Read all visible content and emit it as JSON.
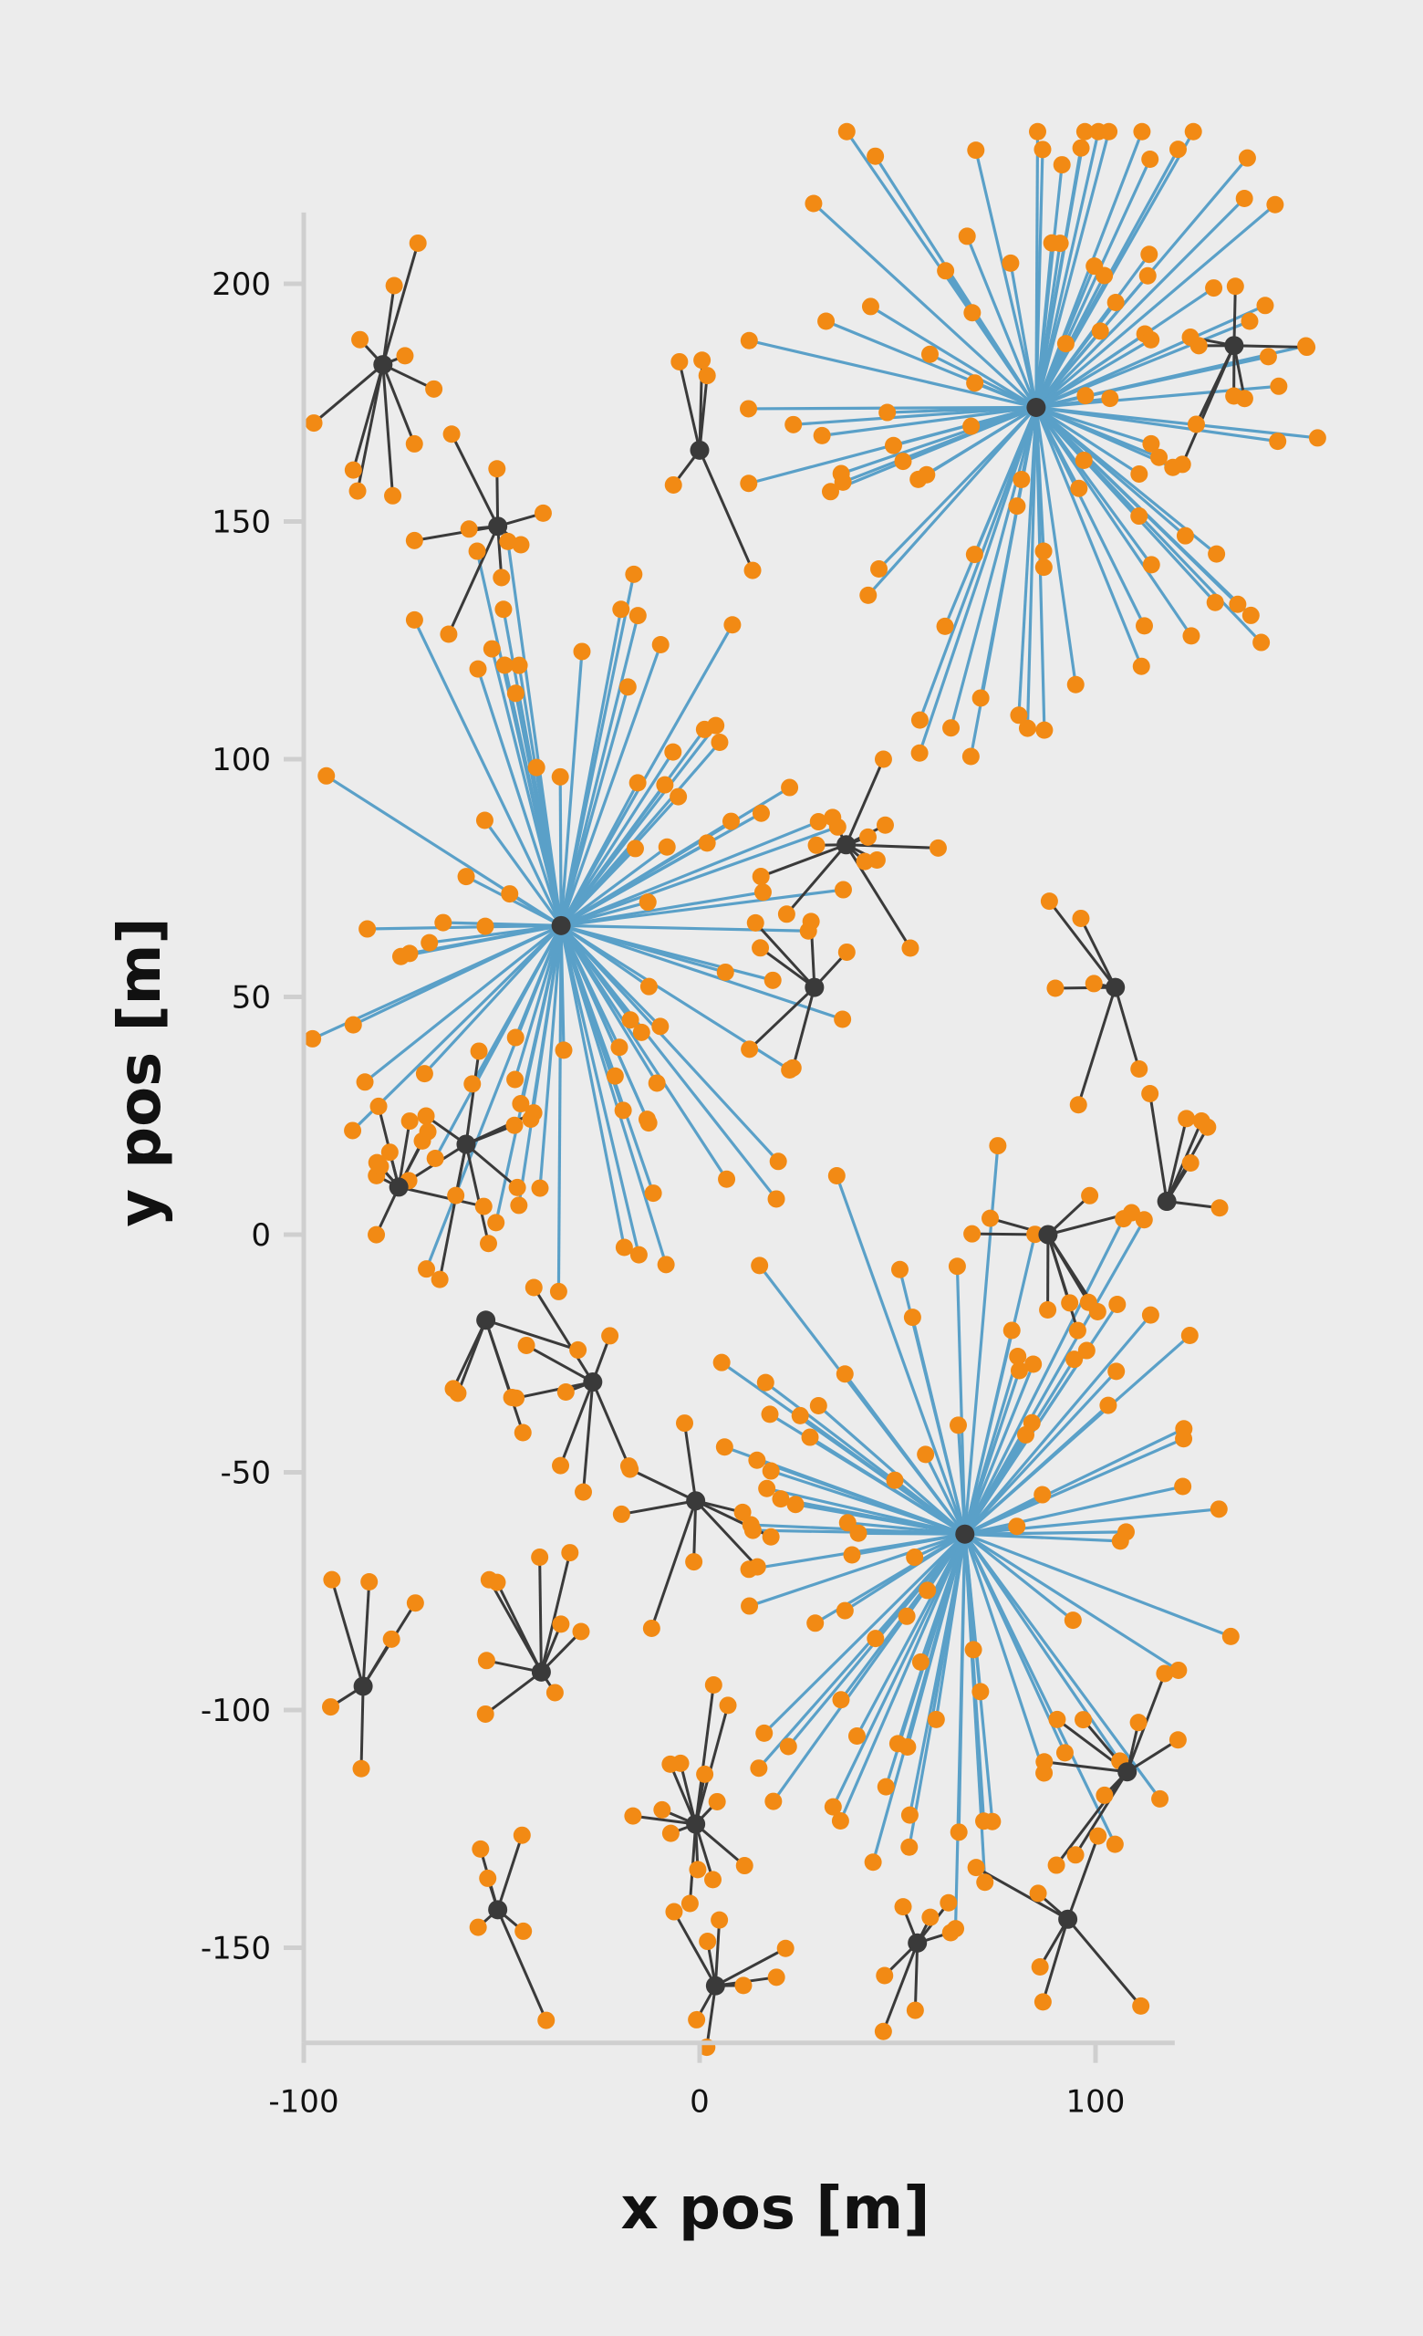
{
  "chart_data": {
    "type": "scatter",
    "title": "",
    "xlabel": "x pos [m]",
    "ylabel": "y pos [m]",
    "xlim": [
      -100,
      120
    ],
    "ylim": [
      -170,
      215
    ],
    "xticks": [
      -100,
      0,
      100
    ],
    "yticks": [
      -150,
      -100,
      -50,
      0,
      50,
      100,
      150,
      200
    ],
    "grid": false,
    "colors": {
      "hub_major_link": "#5aa0c8",
      "hub_minor_link": "#3a3a3a",
      "hub_node": "#3a3a3a",
      "leaf_node": "#f28a14",
      "axis": "#cfcfcf"
    },
    "major_hubs": [
      {
        "x": 85,
        "y": 174
      },
      {
        "x": -35,
        "y": 65
      },
      {
        "x": 67,
        "y": -63
      }
    ],
    "minor_hubs": [
      {
        "x": -80,
        "y": 183
      },
      {
        "x": 0,
        "y": 165
      },
      {
        "x": 135,
        "y": 187
      },
      {
        "x": -51,
        "y": 149
      },
      {
        "x": 37,
        "y": 82
      },
      {
        "x": 29,
        "y": 52
      },
      {
        "x": 105,
        "y": 52
      },
      {
        "x": -76,
        "y": 10
      },
      {
        "x": -59,
        "y": 19
      },
      {
        "x": 88,
        "y": 0
      },
      {
        "x": 118,
        "y": 7
      },
      {
        "x": -54,
        "y": -18
      },
      {
        "x": -27,
        "y": -31
      },
      {
        "x": -1,
        "y": -56
      },
      {
        "x": -85,
        "y": -95
      },
      {
        "x": -40,
        "y": -92
      },
      {
        "x": 108,
        "y": -113
      },
      {
        "x": -1,
        "y": -124
      },
      {
        "x": -51,
        "y": -142
      },
      {
        "x": 55,
        "y": -149
      },
      {
        "x": 93,
        "y": -144
      },
      {
        "x": 4,
        "y": -158
      }
    ]
  }
}
